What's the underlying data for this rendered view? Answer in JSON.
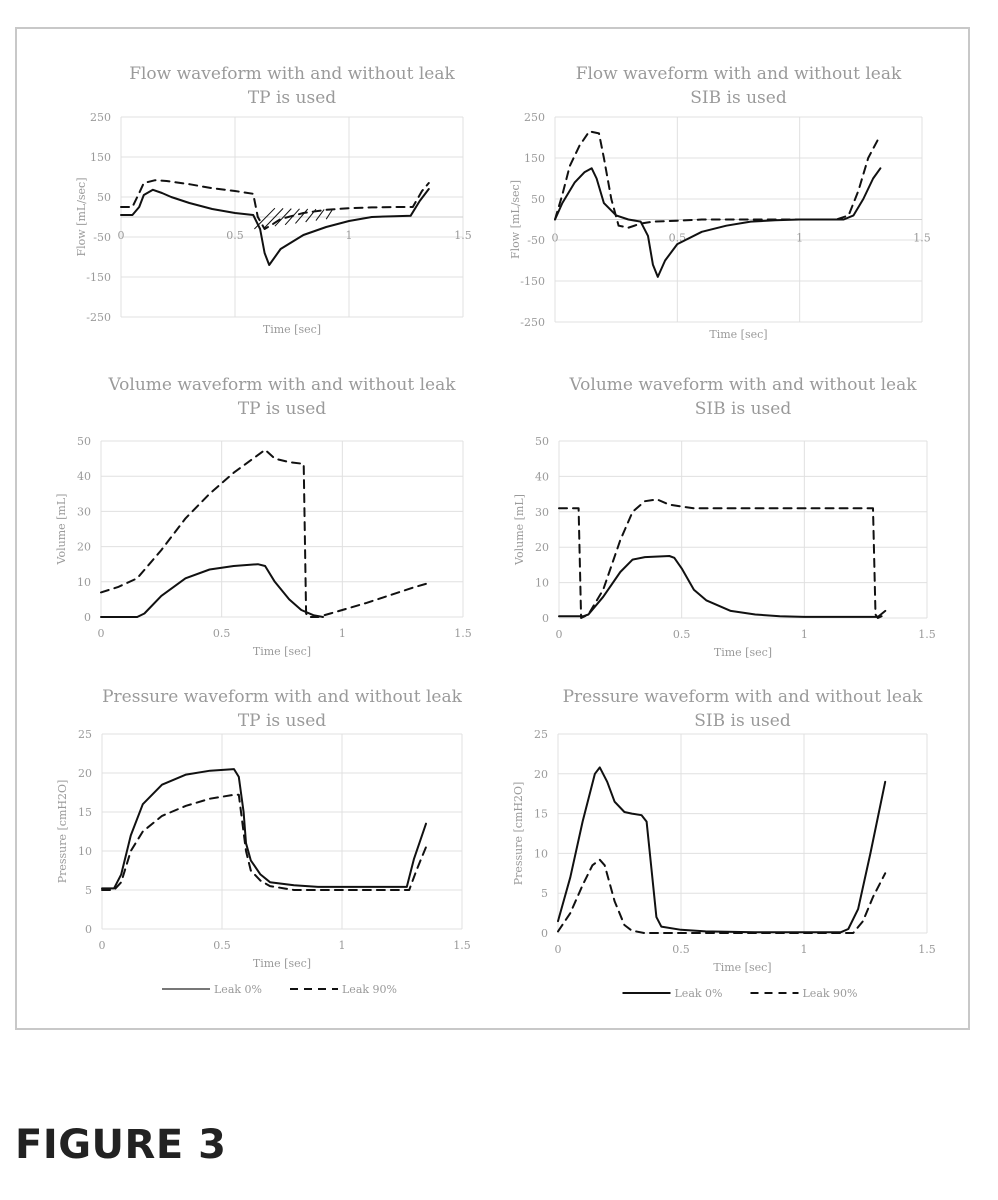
{
  "figure": {
    "label": "FIGURE 3"
  },
  "colors": {
    "frame": "#c8c8c8",
    "grid": "#e0e0e0",
    "text": "#9a9a9a",
    "line": "#111111",
    "legend_tp_solid": "#777777"
  },
  "chart_data": [
    {
      "id": "flow_tp",
      "type": "line",
      "title": "Flow waveform with and without leak",
      "subtitle": "TP is used",
      "xlabel": "Time [sec]",
      "ylabel": "Flow [mL/sec]",
      "xlim": [
        0,
        1.5
      ],
      "ylim": [
        -250,
        250
      ],
      "xticks": [
        0,
        0.5,
        1,
        1.5
      ],
      "xtick_labels": [
        "0",
        "0.5",
        "1",
        "1.5"
      ],
      "yticks": [
        250,
        150,
        50,
        -50,
        -150,
        -250
      ],
      "x_labels_at_zero": true,
      "grid": true,
      "hatched_region": true,
      "series": [
        {
          "style": "solid",
          "x": [
            0,
            0.05,
            0.08,
            0.1,
            0.14,
            0.18,
            0.22,
            0.3,
            0.4,
            0.5,
            0.58,
            0.61,
            0.63,
            0.65,
            0.7,
            0.8,
            0.9,
            1.0,
            1.1,
            1.2,
            1.27,
            1.31,
            1.35
          ],
          "y": [
            5,
            5,
            25,
            55,
            68,
            60,
            50,
            35,
            20,
            10,
            5,
            -30,
            -90,
            -120,
            -80,
            -45,
            -25,
            -10,
            0,
            2,
            3,
            40,
            70
          ]
        },
        {
          "style": "dashed",
          "x": [
            0,
            0.05,
            0.08,
            0.1,
            0.15,
            0.2,
            0.3,
            0.4,
            0.5,
            0.58,
            0.6,
            0.63,
            0.66,
            0.7,
            0.8,
            0.9,
            1.0,
            1.1,
            1.2,
            1.28,
            1.32,
            1.35
          ],
          "y": [
            25,
            25,
            60,
            85,
            92,
            90,
            82,
            72,
            65,
            58,
            0,
            -30,
            -20,
            -5,
            10,
            18,
            22,
            24,
            25,
            25,
            65,
            85
          ]
        }
      ]
    },
    {
      "id": "flow_sib",
      "type": "line",
      "title": "Flow waveform with and without leak",
      "subtitle": "SIB is used",
      "xlabel": "Time [sec]",
      "ylabel": "Flow [mL/sec]",
      "xlim": [
        0,
        1.5
      ],
      "ylim": [
        -250,
        250
      ],
      "xticks": [
        0,
        0.5,
        1,
        1.5
      ],
      "xtick_labels": [
        "0",
        "0.5",
        "1",
        "1.5"
      ],
      "yticks": [
        250,
        150,
        50,
        -50,
        -150,
        -250
      ],
      "x_labels_at_zero": true,
      "grid": true,
      "hatched_region": false,
      "series": [
        {
          "style": "solid",
          "x": [
            0,
            0.03,
            0.08,
            0.12,
            0.15,
            0.17,
            0.2,
            0.25,
            0.3,
            0.35,
            0.38,
            0.4,
            0.42,
            0.45,
            0.5,
            0.6,
            0.7,
            0.8,
            0.9,
            1.0,
            1.1,
            1.18,
            1.22,
            1.26,
            1.3,
            1.33
          ],
          "y": [
            0,
            40,
            90,
            115,
            125,
            100,
            40,
            10,
            0,
            -5,
            -40,
            -110,
            -140,
            -100,
            -60,
            -30,
            -15,
            -5,
            -2,
            0,
            0,
            0,
            10,
            50,
            100,
            125
          ]
        },
        {
          "style": "dashed",
          "x": [
            0,
            0.03,
            0.06,
            0.1,
            0.14,
            0.18,
            0.2,
            0.23,
            0.26,
            0.3,
            0.35,
            0.4,
            0.5,
            0.6,
            0.8,
            1.0,
            1.15,
            1.2,
            1.24,
            1.28,
            1.32
          ],
          "y": [
            0,
            60,
            130,
            180,
            215,
            210,
            150,
            50,
            -15,
            -20,
            -10,
            -5,
            -3,
            0,
            0,
            0,
            0,
            10,
            70,
            150,
            195
          ]
        }
      ]
    },
    {
      "id": "volume_tp",
      "type": "line",
      "title": "Volume waveform with and without leak",
      "subtitle": "TP is used",
      "xlabel": "Time [sec]",
      "ylabel": "Volume [mL]",
      "xlim": [
        0,
        1.5
      ],
      "ylim": [
        0,
        50
      ],
      "xticks": [
        0,
        0.5,
        1,
        1.5
      ],
      "xtick_labels": [
        "0",
        "0.5",
        "1",
        "1.5"
      ],
      "yticks": [
        0,
        10,
        20,
        30,
        40,
        50
      ],
      "x_labels_at_zero": false,
      "grid": true,
      "series": [
        {
          "style": "solid",
          "x": [
            0,
            0.15,
            0.18,
            0.25,
            0.35,
            0.45,
            0.55,
            0.65,
            0.68,
            0.72,
            0.78,
            0.83,
            0.88,
            0.92
          ],
          "y": [
            0,
            0,
            1,
            6,
            11,
            13.5,
            14.5,
            15,
            14.5,
            10,
            5,
            2,
            0.5,
            0
          ]
        },
        {
          "style": "dashed",
          "x": [
            0,
            0.07,
            0.15,
            0.25,
            0.35,
            0.45,
            0.55,
            0.65,
            0.68,
            0.72,
            0.78,
            0.84,
            0.85,
            0.86,
            0.9,
            0.95,
            1.1,
            1.3,
            1.35
          ],
          "y": [
            7,
            8.5,
            11,
            19,
            28,
            35,
            41,
            46,
            47.5,
            45,
            44,
            43.5,
            1,
            0,
            0,
            1,
            4,
            8.5,
            9.5
          ]
        }
      ]
    },
    {
      "id": "volume_sib",
      "type": "line",
      "title": "Volume waveform with and without leak",
      "subtitle": "SIB is used",
      "xlabel": "Time [sec]",
      "ylabel": "Volume [mL]",
      "xlim": [
        0,
        1.5
      ],
      "ylim": [
        0,
        50
      ],
      "xticks": [
        0,
        0.5,
        1,
        1.5
      ],
      "xtick_labels": [
        "0",
        "0.5",
        "1",
        "1.5"
      ],
      "yticks": [
        0,
        10,
        20,
        30,
        40,
        50
      ],
      "x_labels_at_zero": false,
      "grid": true,
      "series": [
        {
          "style": "solid",
          "x": [
            0,
            0.1,
            0.12,
            0.18,
            0.25,
            0.3,
            0.35,
            0.45,
            0.47,
            0.5,
            0.55,
            0.6,
            0.7,
            0.8,
            0.9,
            1.0,
            1.1,
            1.2,
            1.3,
            1.33
          ],
          "y": [
            0.5,
            0.5,
            1,
            6,
            13,
            16.5,
            17.2,
            17.5,
            17,
            14,
            8,
            5,
            2,
            1,
            0.5,
            0.3,
            0.3,
            0.3,
            0.3,
            2
          ]
        },
        {
          "style": "dashed",
          "x": [
            0,
            0.07,
            0.08,
            0.09,
            0.12,
            0.18,
            0.25,
            0.3,
            0.35,
            0.4,
            0.45,
            0.55,
            0.7,
            0.9,
            1.1,
            1.28,
            1.29,
            1.3,
            1.33
          ],
          "y": [
            31,
            31,
            31,
            0,
            1,
            8,
            22,
            30,
            33,
            33.5,
            32,
            31,
            31,
            31,
            31,
            31,
            1,
            0,
            1
          ]
        }
      ]
    },
    {
      "id": "pressure_tp",
      "type": "line",
      "title": "Pressure waveform with and without leak",
      "subtitle": "TP is used",
      "xlabel": "Time [sec]",
      "ylabel": "Pressure [cmH2O]",
      "xlim": [
        0,
        1.5
      ],
      "ylim": [
        0,
        25
      ],
      "xticks": [
        0,
        0.5,
        1,
        1.5
      ],
      "xtick_labels": [
        "0",
        "0.5",
        "1",
        "1.5"
      ],
      "yticks": [
        0,
        5,
        10,
        15,
        20,
        25
      ],
      "x_labels_at_zero": false,
      "grid": true,
      "legend": {
        "placement": "bottom",
        "entries": [
          {
            "label": "Leak 0%",
            "style": "solid"
          },
          {
            "label": "Leak 90%",
            "style": "dashed"
          }
        ]
      },
      "series": [
        {
          "style": "solid",
          "x": [
            0,
            0.05,
            0.08,
            0.12,
            0.17,
            0.25,
            0.35,
            0.45,
            0.55,
            0.57,
            0.59,
            0.6,
            0.62,
            0.66,
            0.7,
            0.8,
            0.9,
            1.0,
            1.1,
            1.2,
            1.27,
            1.3,
            1.35
          ],
          "y": [
            5.2,
            5.2,
            7,
            12,
            16,
            18.5,
            19.8,
            20.3,
            20.5,
            19.5,
            15,
            11,
            8.8,
            7,
            6,
            5.6,
            5.4,
            5.4,
            5.4,
            5.4,
            5.4,
            9,
            13.5
          ]
        },
        {
          "style": "dashed",
          "x": [
            0,
            0.05,
            0.08,
            0.12,
            0.17,
            0.25,
            0.35,
            0.45,
            0.55,
            0.57,
            0.6,
            0.62,
            0.66,
            0.7,
            0.8,
            0.9,
            1.0,
            1.1,
            1.2,
            1.28,
            1.31,
            1.35
          ],
          "y": [
            5,
            5,
            6,
            10,
            12.5,
            14.5,
            15.8,
            16.7,
            17.2,
            17.2,
            10,
            7.5,
            6.2,
            5.5,
            5,
            5,
            5,
            5,
            5,
            5,
            7.5,
            10.5
          ]
        }
      ]
    },
    {
      "id": "pressure_sib",
      "type": "line",
      "title": "Pressure waveform with and without leak",
      "subtitle": "SIB is used",
      "xlabel": "Time [sec]",
      "ylabel": "Pressure [cmH2O]",
      "xlim": [
        0,
        1.5
      ],
      "ylim": [
        0,
        25
      ],
      "xticks": [
        0,
        0.5,
        1,
        1.5
      ],
      "xtick_labels": [
        "0",
        "0.5",
        "1",
        "1.5"
      ],
      "yticks": [
        0,
        5,
        10,
        15,
        20,
        25
      ],
      "x_labels_at_zero": false,
      "grid": true,
      "legend": {
        "placement": "bottom",
        "entries": [
          {
            "label": "Leak 0%",
            "style": "solid"
          },
          {
            "label": "Leak 90%",
            "style": "dashed"
          }
        ]
      },
      "series": [
        {
          "style": "solid",
          "x": [
            0,
            0.05,
            0.1,
            0.15,
            0.17,
            0.2,
            0.23,
            0.27,
            0.3,
            0.34,
            0.36,
            0.38,
            0.4,
            0.42,
            0.5,
            0.6,
            0.8,
            1.0,
            1.15,
            1.18,
            1.22,
            1.27,
            1.33
          ],
          "y": [
            1.5,
            7,
            14,
            20,
            20.8,
            19,
            16.5,
            15.2,
            15,
            14.8,
            14,
            8,
            2,
            0.8,
            0.4,
            0.2,
            0.1,
            0.1,
            0.1,
            0.5,
            3,
            10,
            19
          ]
        },
        {
          "style": "dashed",
          "x": [
            0,
            0.05,
            0.1,
            0.14,
            0.17,
            0.19,
            0.23,
            0.27,
            0.3,
            0.35,
            0.5,
            0.8,
            1.1,
            1.2,
            1.24,
            1.28,
            1.33
          ],
          "y": [
            0.2,
            2.5,
            6,
            8.5,
            9.2,
            8.5,
            4,
            1,
            0.3,
            0,
            0,
            0,
            0,
            0,
            1.5,
            4.5,
            7.5
          ]
        }
      ]
    }
  ]
}
